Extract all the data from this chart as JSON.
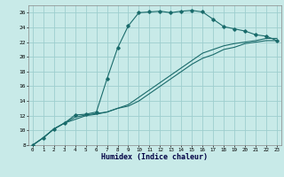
{
  "xlabel": "Humidex (Indice chaleur)",
  "bg_color": "#c8eae8",
  "grid_color": "#9ecece",
  "line_color": "#1a6b6b",
  "xlim": [
    0,
    23
  ],
  "ylim": [
    8,
    27
  ],
  "xticks": [
    0,
    1,
    2,
    3,
    4,
    5,
    6,
    7,
    8,
    9,
    10,
    11,
    12,
    13,
    14,
    15,
    16,
    17,
    18,
    19,
    20,
    21,
    22,
    23
  ],
  "yticks": [
    8,
    10,
    12,
    14,
    16,
    18,
    20,
    22,
    24,
    26
  ],
  "curve1_x": [
    0,
    1,
    2,
    3,
    4,
    5,
    6,
    7,
    8,
    9,
    10,
    11,
    12,
    13,
    14,
    15,
    16,
    17,
    18,
    19,
    20,
    21,
    22,
    23
  ],
  "curve1_y": [
    8.0,
    9.0,
    10.2,
    11.0,
    12.1,
    12.2,
    12.5,
    17.0,
    21.2,
    24.2,
    26.0,
    26.1,
    26.2,
    26.0,
    26.2,
    26.3,
    26.1,
    25.1,
    24.1,
    23.8,
    23.5,
    23.0,
    22.8,
    22.2
  ],
  "curve2_x": [
    0,
    1,
    2,
    3,
    4,
    5,
    6,
    7,
    8,
    9,
    10,
    11,
    12,
    13,
    14,
    15,
    16,
    17,
    18,
    19,
    20,
    21,
    22,
    23
  ],
  "curve2_y": [
    8.0,
    9.0,
    10.2,
    11.0,
    11.8,
    12.1,
    12.3,
    12.5,
    13.0,
    13.5,
    14.5,
    15.5,
    16.5,
    17.5,
    18.5,
    19.5,
    20.5,
    21.0,
    21.5,
    21.8,
    22.0,
    22.2,
    22.5,
    22.5
  ],
  "curve3_x": [
    0,
    1,
    2,
    3,
    4,
    5,
    6,
    7,
    8,
    9,
    10,
    11,
    12,
    13,
    14,
    15,
    16,
    17,
    18,
    19,
    20,
    21,
    22,
    23
  ],
  "curve3_y": [
    8.0,
    9.0,
    10.2,
    11.0,
    11.5,
    12.0,
    12.2,
    12.5,
    13.0,
    13.3,
    14.0,
    15.0,
    16.0,
    17.0,
    18.0,
    19.0,
    19.8,
    20.3,
    21.0,
    21.3,
    21.8,
    22.0,
    22.2,
    22.2
  ]
}
